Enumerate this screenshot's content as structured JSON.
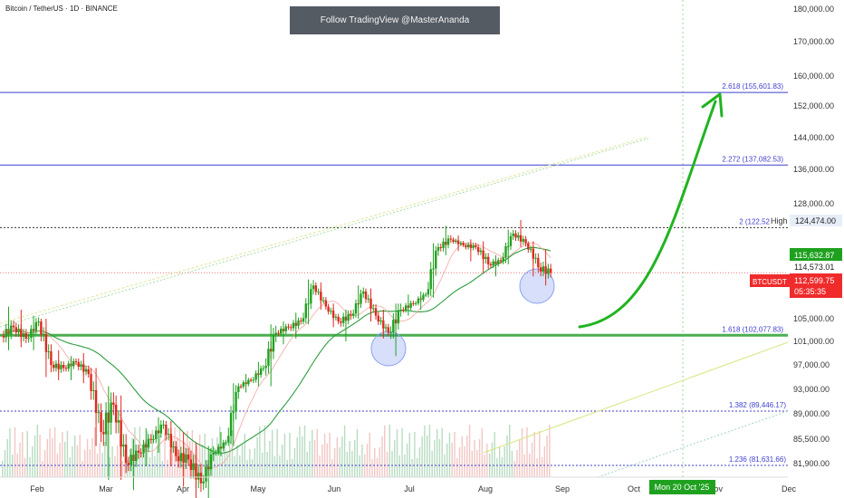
{
  "header": {
    "symbol_title": "Bitcoin / TetherUS · 1D · BINANCE",
    "banner": "Follow TradingView @MasterAnanda"
  },
  "colors": {
    "up": "#26a69a",
    "up_bright": "#1fa11f",
    "down": "#e0281e",
    "ma": "#2e9e3e",
    "fib_blue": "#3f3fcf",
    "support_green": "#4caf50",
    "arrow": "#22b322",
    "price_red": "#ef2b2b",
    "dash": "#555555"
  },
  "chart_data": {
    "type": "candlestick",
    "x_axis": {
      "labels": [
        "Feb",
        "Mar",
        "Apr",
        "May",
        "Jun",
        "Jul",
        "Aug",
        "Sep",
        "Oct",
        "Nov",
        "Dec"
      ],
      "start": "2025-01-20",
      "crosshair_date_label": "Mon 20 Oct '25"
    },
    "y_axis": {
      "ticks": [
        "180,000.00",
        "170,000.00",
        "160,000.00",
        "152,000.00",
        "144,000.00",
        "136,000.00",
        "128,000.00",
        "124,474.00",
        "115,632.87",
        "114,573.01",
        "112,599.75",
        "105,000.00",
        "101,000.00",
        "97,000.00",
        "93,000.00",
        "89,000.00",
        "85,500.00",
        "81,900.00"
      ]
    },
    "series": [
      {
        "values": [
          {
            "d": "2025-01-20",
            "o": 102000,
            "h": 107000,
            "l": 99500,
            "c": 103500
          },
          {
            "d": "2025-01-25",
            "o": 103500,
            "h": 106500,
            "l": 100000,
            "c": 101500
          },
          {
            "d": "2025-01-30",
            "o": 101500,
            "h": 105500,
            "l": 99500,
            "c": 104500
          },
          {
            "d": "2025-02-04",
            "o": 104500,
            "h": 105000,
            "l": 95000,
            "c": 97000
          },
          {
            "d": "2025-02-09",
            "o": 97000,
            "h": 99500,
            "l": 94500,
            "c": 96500
          },
          {
            "d": "2025-02-14",
            "o": 96500,
            "h": 98500,
            "l": 94500,
            "c": 97500
          },
          {
            "d": "2025-02-19",
            "o": 97500,
            "h": 99000,
            "l": 94000,
            "c": 95500
          },
          {
            "d": "2025-02-24",
            "o": 95500,
            "h": 96500,
            "l": 84500,
            "c": 86500
          },
          {
            "d": "2025-03-01",
            "o": 86500,
            "h": 93500,
            "l": 79500,
            "c": 90500
          },
          {
            "d": "2025-03-06",
            "o": 90500,
            "h": 92000,
            "l": 79500,
            "c": 82000
          },
          {
            "d": "2025-03-11",
            "o": 82000,
            "h": 85500,
            "l": 78000,
            "c": 83500
          },
          {
            "d": "2025-03-16",
            "o": 83500,
            "h": 87000,
            "l": 81500,
            "c": 85500
          },
          {
            "d": "2025-03-21",
            "o": 85500,
            "h": 88500,
            "l": 83500,
            "c": 87500
          },
          {
            "d": "2025-03-26",
            "o": 87500,
            "h": 88000,
            "l": 81500,
            "c": 83000
          },
          {
            "d": "2025-03-31",
            "o": 83000,
            "h": 86500,
            "l": 78500,
            "c": 82500
          },
          {
            "d": "2025-04-05",
            "o": 82500,
            "h": 85000,
            "l": 74500,
            "c": 79000
          },
          {
            "d": "2025-04-10",
            "o": 79000,
            "h": 84500,
            "l": 76500,
            "c": 83500
          },
          {
            "d": "2025-04-15",
            "o": 83500,
            "h": 86500,
            "l": 83000,
            "c": 85000
          },
          {
            "d": "2025-04-20",
            "o": 85000,
            "h": 94000,
            "l": 84500,
            "c": 93500
          },
          {
            "d": "2025-04-25",
            "o": 93500,
            "h": 95500,
            "l": 92500,
            "c": 94500
          },
          {
            "d": "2025-04-30",
            "o": 94500,
            "h": 97500,
            "l": 93500,
            "c": 96500
          },
          {
            "d": "2025-05-05",
            "o": 96500,
            "h": 104000,
            "l": 93500,
            "c": 102500
          },
          {
            "d": "2025-05-10",
            "o": 102500,
            "h": 104500,
            "l": 100500,
            "c": 103500
          },
          {
            "d": "2025-05-15",
            "o": 103500,
            "h": 106000,
            "l": 101500,
            "c": 104500
          },
          {
            "d": "2025-05-20",
            "o": 104500,
            "h": 111500,
            "l": 104000,
            "c": 110500
          },
          {
            "d": "2025-05-25",
            "o": 110500,
            "h": 111000,
            "l": 106500,
            "c": 107000
          },
          {
            "d": "2025-05-30",
            "o": 107000,
            "h": 107500,
            "l": 103500,
            "c": 104500
          },
          {
            "d": "2025-06-04",
            "o": 104500,
            "h": 106500,
            "l": 101000,
            "c": 105500
          },
          {
            "d": "2025-06-09",
            "o": 105500,
            "h": 110500,
            "l": 105000,
            "c": 109500
          },
          {
            "d": "2025-06-14",
            "o": 109500,
            "h": 110000,
            "l": 104500,
            "c": 105500
          },
          {
            "d": "2025-06-19",
            "o": 105500,
            "h": 106500,
            "l": 101500,
            "c": 102500
          },
          {
            "d": "2025-06-24",
            "o": 102500,
            "h": 107500,
            "l": 98500,
            "c": 106500
          },
          {
            "d": "2025-06-29",
            "o": 106500,
            "h": 109000,
            "l": 105500,
            "c": 107500
          },
          {
            "d": "2025-07-04",
            "o": 107500,
            "h": 109500,
            "l": 106500,
            "c": 109000
          },
          {
            "d": "2025-07-09",
            "o": 109000,
            "h": 118500,
            "l": 108500,
            "c": 117500
          },
          {
            "d": "2025-07-14",
            "o": 117500,
            "h": 123000,
            "l": 115500,
            "c": 119500
          },
          {
            "d": "2025-07-19",
            "o": 119500,
            "h": 120500,
            "l": 116500,
            "c": 118000
          },
          {
            "d": "2025-07-24",
            "o": 118000,
            "h": 119500,
            "l": 114500,
            "c": 117500
          },
          {
            "d": "2025-07-29",
            "o": 117500,
            "h": 119000,
            "l": 112500,
            "c": 114000
          },
          {
            "d": "2025-08-03",
            "o": 114000,
            "h": 115500,
            "l": 112000,
            "c": 114500
          },
          {
            "d": "2025-08-08",
            "o": 114500,
            "h": 122000,
            "l": 114000,
            "c": 121000
          },
          {
            "d": "2025-08-13",
            "o": 121000,
            "h": 124474,
            "l": 117500,
            "c": 118500
          },
          {
            "d": "2025-08-18",
            "o": 118500,
            "h": 119000,
            "l": 112000,
            "c": 113500
          },
          {
            "d": "2025-08-23",
            "o": 113500,
            "h": 117000,
            "l": 110500,
            "c": 112599
          }
        ]
      }
    ],
    "fib_levels": [
      {
        "label": "2.618 (155,601.83)",
        "value": 155601.83
      },
      {
        "label": "2.272 (137,082.53)",
        "value": 137082.53
      },
      {
        "label": "2 (122,52",
        "value": 122520
      },
      {
        "label": "1.618 (102,077.83)",
        "value": 102077.83
      },
      {
        "label": "1.382 (89,446.17)",
        "value": 89446.17
      },
      {
        "label": "1.236 (81,631.66)",
        "value": 81631.66
      }
    ],
    "price_tags": {
      "high_label": "High",
      "high": "124,474.00",
      "ma_value": "115,632.87",
      "prev_value": "114,573.01",
      "ticker": "BTCUSDT",
      "last": "112,599.75",
      "countdown": "05:35:35"
    }
  }
}
